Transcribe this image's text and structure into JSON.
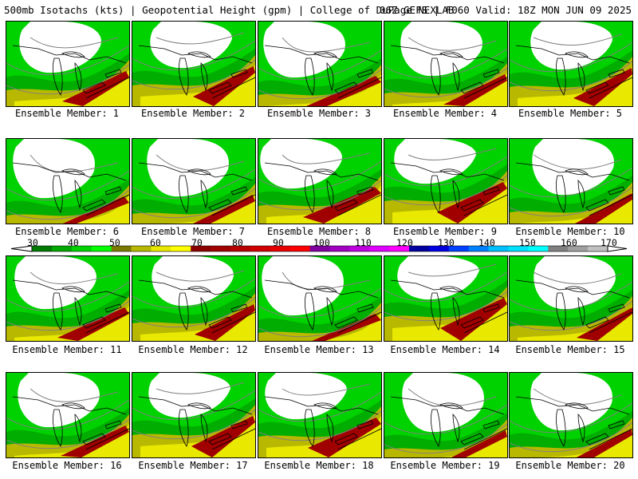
{
  "header": {
    "title_left": "500mb Isotachs (kts) | Geopotential Height (gpm) | College of DuPage NEXLAB",
    "title_right": "06Z GEFS | F060 Valid: 18Z MON JUN 09 2025"
  },
  "members": [
    "Ensemble Member: 1",
    "Ensemble Member: 2",
    "Ensemble Member: 3",
    "Ensemble Member: 4",
    "Ensemble Member: 5",
    "Ensemble Member: 6",
    "Ensemble Member: 7",
    "Ensemble Member: 8",
    "Ensemble Member: 9",
    "Ensemble Member: 10",
    "Ensemble Member: 11",
    "Ensemble Member: 12",
    "Ensemble Member: 13",
    "Ensemble Member: 14",
    "Ensemble Member: 15",
    "Ensemble Member: 16",
    "Ensemble Member: 17",
    "Ensemble Member: 18",
    "Ensemble Member: 19",
    "Ensemble Member: 20"
  ],
  "colorbar": {
    "labels": [
      "30",
      "40",
      "50",
      "60",
      "70",
      "80",
      "90",
      "100",
      "110",
      "120",
      "130",
      "140",
      "150",
      "160",
      "170"
    ],
    "colors": [
      "#007a00",
      "#00a800",
      "#00d200",
      "#00ff00",
      "#7a7a00",
      "#b8b800",
      "#e8e800",
      "#ffff00",
      "#8b0000",
      "#a00000",
      "#b80000",
      "#d00000",
      "#e80000",
      "#ff0000",
      "#8000a0",
      "#a000c0",
      "#c000e0",
      "#e000ff",
      "#ff00ff",
      "#0000a0",
      "#0000e0",
      "#0040ff",
      "#0080ff",
      "#00c0ff",
      "#00e0ff",
      "#00ffff",
      "#808080",
      "#a0a0a0",
      "#c0c0c0"
    ]
  }
}
